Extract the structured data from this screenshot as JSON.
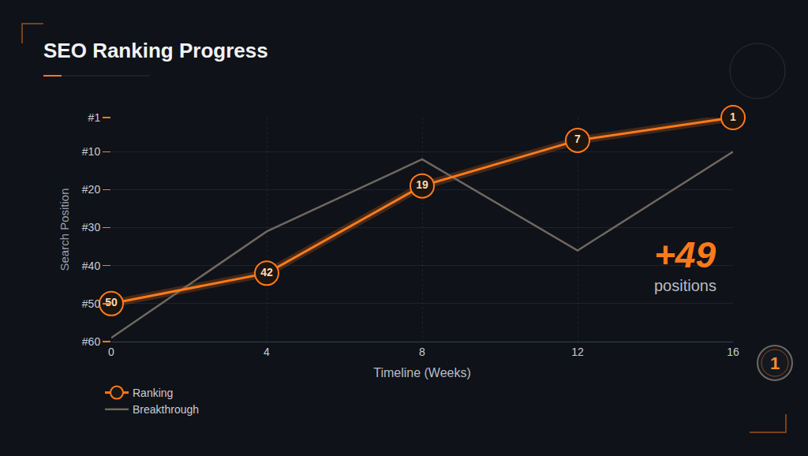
{
  "chart_data": {
    "type": "line",
    "title": "SEO Ranking Progress",
    "x_label": "Timeline (Weeks)",
    "y_label": "Search Position",
    "x": [
      0,
      4,
      8,
      12,
      16
    ],
    "series": [
      {
        "name": "Ranking",
        "color": "#ff7a1a",
        "marker": "circle",
        "line_style": "solid",
        "values": [
          50,
          42,
          19,
          7,
          1
        ]
      },
      {
        "name": "Breakthrough",
        "color": "#6e6860",
        "marker": "none",
        "line_style": "solid",
        "values": [
          59,
          31,
          12,
          36,
          10
        ]
      }
    ],
    "xlim": [
      0,
      16
    ],
    "xticks": [
      0,
      4,
      8,
      12,
      16
    ],
    "ylim": [
      60,
      1
    ],
    "yticks": [
      {
        "value": 1,
        "label": "#1"
      },
      {
        "value": 10,
        "label": "#10"
      },
      {
        "value": 20,
        "label": "#20"
      },
      {
        "value": 30,
        "label": "#30"
      },
      {
        "value": 40,
        "label": "#40"
      },
      {
        "value": 50,
        "label": "#50"
      },
      {
        "value": 60,
        "label": "#60"
      }
    ],
    "grid": true,
    "legend": "bottom left",
    "data_labels": true,
    "annotations": [
      "+49",
      "positions",
      "1"
    ]
  }
}
